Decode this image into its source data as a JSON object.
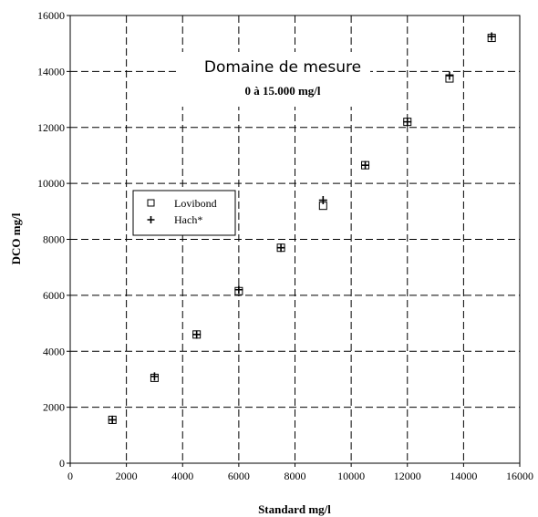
{
  "chart_data": {
    "type": "scatter",
    "title": "",
    "xlabel": "Standard mg/l",
    "ylabel": "DCO mg/l",
    "xlim": [
      0,
      16000
    ],
    "ylim": [
      0,
      16000
    ],
    "xticks": [
      "0",
      "2000",
      "4000",
      "6000",
      "8000",
      "10000",
      "12000",
      "14000",
      "16000"
    ],
    "yticks": [
      "0",
      "2000",
      "4000",
      "6000",
      "8000",
      "10000",
      "12000",
      "14000",
      "16000"
    ],
    "grid": true,
    "legend_position": "center-left",
    "annotation": {
      "title": "Domaine de mesure",
      "subtitle": "0 à 15.000 mg/l"
    },
    "series": [
      {
        "name": "Lovibond",
        "marker": "square",
        "x": [
          1500,
          3000,
          4500,
          6000,
          7500,
          9000,
          10500,
          12000,
          13500,
          15000
        ],
        "y": [
          1550,
          3050,
          4600,
          6150,
          7700,
          9200,
          10650,
          12200,
          13750,
          15200
        ]
      },
      {
        "name": "Hach*",
        "marker": "plus",
        "x": [
          1500,
          3000,
          4500,
          6000,
          7500,
          9000,
          10500,
          12000,
          13500,
          15000
        ],
        "y": [
          1550,
          3100,
          4600,
          6200,
          7700,
          9400,
          10650,
          12200,
          13850,
          15250
        ]
      }
    ]
  }
}
